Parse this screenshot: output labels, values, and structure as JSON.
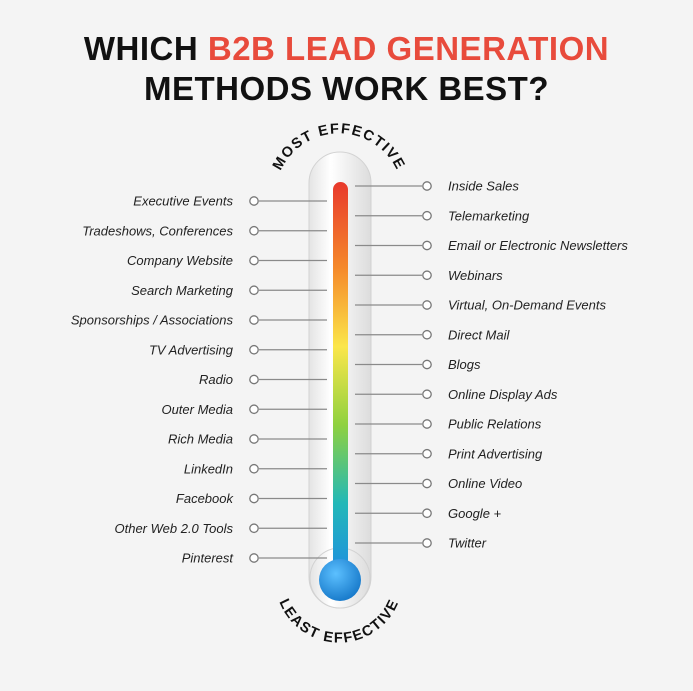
{
  "title": {
    "line1_prefix": "WHICH ",
    "line1_accent": "B2B LEAD GENERATION",
    "line2": "METHODS WORK BEST?"
  },
  "scale": {
    "top_label": "MOST EFFECTIVE",
    "bottom_label": "LEAST EFFECTIVE"
  },
  "colors": {
    "accent": "#e84b3c",
    "gradient": [
      "#e8392c",
      "#f5892b",
      "#fbe64a",
      "#8fd13f",
      "#22b8b8",
      "#1f8fe0"
    ],
    "bulb": "#1f8fe0"
  },
  "left_methods": [
    "Executive Events",
    "Tradeshows, Conferences",
    "Company Website",
    "Search Marketing",
    "Sponsorships / Associations",
    "TV Advertising",
    "Radio",
    "Outer Media",
    "Rich Media",
    "LinkedIn",
    "Facebook",
    "Other Web 2.0 Tools",
    "Pinterest"
  ],
  "right_methods": [
    "Inside Sales",
    "Telemarketing",
    "Email or Electronic Newsletters",
    "Webinars",
    "Virtual, On-Demand Events",
    "Direct Mail",
    "Blogs",
    "Online Display Ads",
    "Public Relations",
    "Print Advertising",
    "Online Video",
    "Google +",
    "Twitter"
  ]
}
